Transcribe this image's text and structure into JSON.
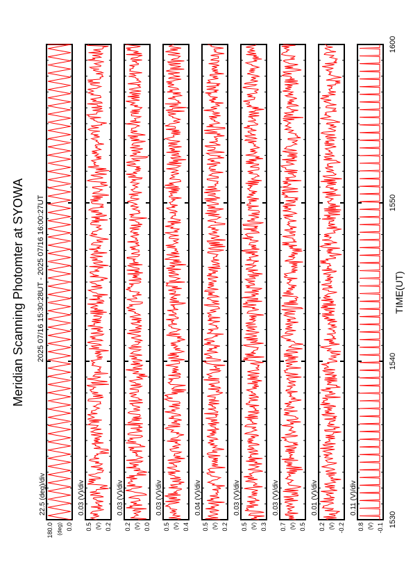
{
  "title": "Meridian Scanning Photomter at SYOWA",
  "time_range": "2025 07/16 15:30:28UT - 2025 07/16 16:00:27UT",
  "xlabel": "TIME(UT)",
  "x_ticks": [
    "1530",
    "1540",
    "1550",
    "1600"
  ],
  "colors": {
    "trace": "#ff0000",
    "frame": "#000000"
  },
  "chart_data": {
    "type": "line",
    "x_range": [
      "15:30:28",
      "16:00:27"
    ],
    "x_tick_values": [
      1530,
      1540,
      1550,
      1600
    ],
    "panels": [
      {
        "id": "angle",
        "scale": "22.5 (deg)/div",
        "ylabels": [
          "180.0",
          "0.0"
        ],
        "yunit": "(deg)",
        "ylim": [
          0,
          180
        ],
        "pattern": "scan_sawtooth"
      },
      {
        "id": "ch1",
        "scale": "0.03 (V)/div",
        "ylabels": [
          "0.5",
          "0.2"
        ],
        "yunit": "(V)",
        "ylim": [
          0.2,
          0.5
        ],
        "pattern": "noise"
      },
      {
        "id": "ch2",
        "scale": "0.03 (V)/div",
        "ylabels": [
          "0.2",
          "0.0"
        ],
        "yunit": "(V)",
        "ylim": [
          0.0,
          0.2
        ],
        "pattern": "noise"
      },
      {
        "id": "ch3",
        "scale": "0.03 (V)/div",
        "ylabels": [
          "0.5",
          "0.4"
        ],
        "yunit": "(V)",
        "ylim": [
          0.4,
          0.5
        ],
        "pattern": "noise"
      },
      {
        "id": "ch4",
        "scale": "0.04 (V)/div",
        "ylabels": [
          "0.5",
          "0.2"
        ],
        "yunit": "(V)",
        "ylim": [
          0.2,
          0.5
        ],
        "pattern": "noise"
      },
      {
        "id": "ch5",
        "scale": "0.03 (V)/div",
        "ylabels": [
          "0.5",
          "0.3"
        ],
        "yunit": "(V)",
        "ylim": [
          0.3,
          0.5
        ],
        "pattern": "noise"
      },
      {
        "id": "ch6",
        "scale": "0.03 (V)/div",
        "ylabels": [
          "0.7",
          "0.5"
        ],
        "yunit": "(V)",
        "ylim": [
          0.5,
          0.7
        ],
        "pattern": "noise"
      },
      {
        "id": "ch7",
        "scale": "0.01 (V)/div",
        "ylabels": [
          "0.2",
          "-0.2"
        ],
        "yunit": "(V)",
        "ylim": [
          -0.2,
          0.2
        ],
        "pattern": "noise"
      },
      {
        "id": "ch8",
        "scale": "0.11 (V)/div",
        "ylabels": [
          "0.8",
          "-0.1"
        ],
        "yunit": "(V)",
        "ylim": [
          -0.1,
          0.8
        ],
        "pattern": "spikes"
      }
    ]
  }
}
